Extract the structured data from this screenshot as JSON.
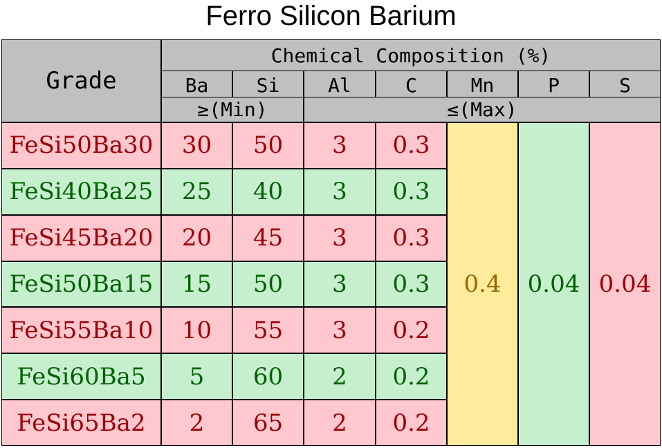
{
  "title": "Ferro Silicon Barium",
  "header": {
    "grade": "Grade",
    "group": "Chemical Composition (%)",
    "columns": [
      "Ba",
      "Si",
      "Al",
      "C",
      "Mn",
      "P",
      "S"
    ],
    "min_label": "≥(Min)",
    "max_label": "≤(Max)"
  },
  "rows": [
    [
      "FeSi50Ba30",
      "30",
      "50",
      "3",
      "0.3"
    ],
    [
      "FeSi40Ba25",
      "25",
      "40",
      "3",
      "0.3"
    ],
    [
      "FeSi45Ba20",
      "20",
      "45",
      "3",
      "0.3"
    ],
    [
      "FeSi50Ba15",
      "15",
      "50",
      "3",
      "0.3"
    ],
    [
      "FeSi55Ba10",
      "10",
      "55",
      "3",
      "0.2"
    ],
    [
      "FeSi60Ba5",
      "5",
      "60",
      "2",
      "0.2"
    ],
    [
      "FeSi65Ba2",
      "2",
      "65",
      "2",
      "0.2"
    ]
  ],
  "shared": {
    "Mn": "0.4",
    "P": "0.04",
    "S": "0.04"
  }
}
